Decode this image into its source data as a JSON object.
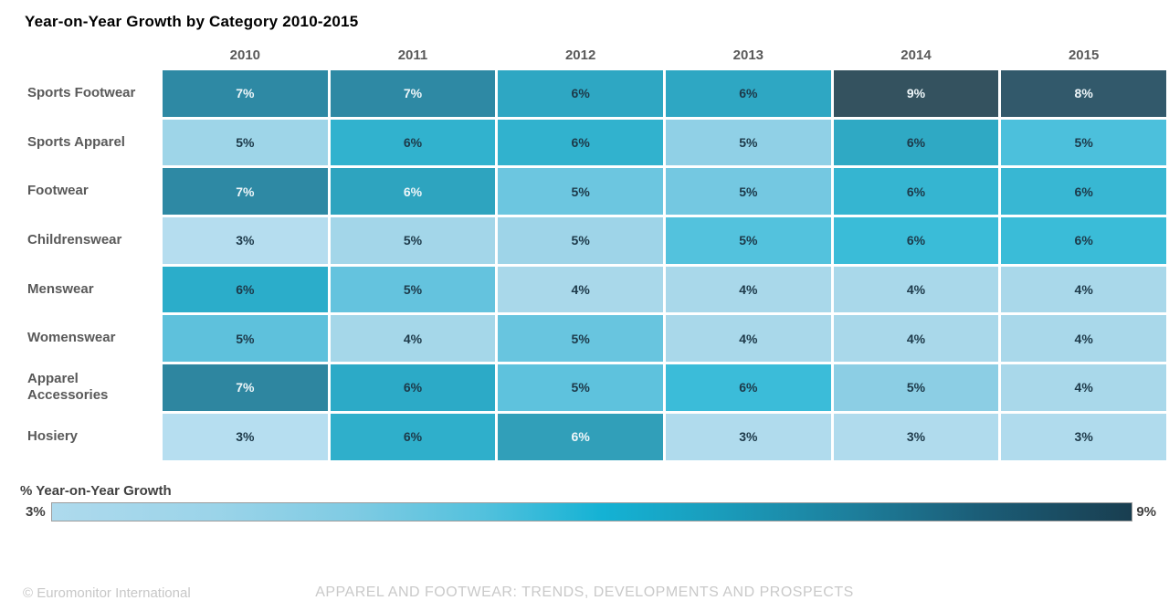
{
  "title": "Year-on-Year Growth by Category 2010-2015",
  "chart_data": {
    "type": "heatmap",
    "title": "Year-on-Year Growth by Category 2010-2015",
    "value_suffix": "%",
    "columns": [
      "2010",
      "2011",
      "2012",
      "2013",
      "2014",
      "2015"
    ],
    "rows": [
      {
        "label": "Sports Footwear",
        "values": [
          7,
          7,
          6,
          6,
          9,
          8
        ],
        "cell_colors": [
          "#2e89a4",
          "#2e89a4",
          "#2ea7c3",
          "#2ea7c3",
          "#34525f",
          "#32596b"
        ],
        "text_colors": [
          "#eef6f9",
          "#eef6f9",
          "#1d3949",
          "#1d3949",
          "#eef6f9",
          "#eef6f9"
        ]
      },
      {
        "label": "Sports Apparel",
        "values": [
          5,
          6,
          6,
          5,
          6,
          5
        ],
        "cell_colors": [
          "#9ed5e8",
          "#31b2ce",
          "#31b2ce",
          "#90d0e6",
          "#2fa9c4",
          "#4cc0dc"
        ],
        "text_colors": [
          "#1d3949",
          "#1d3949",
          "#1d3949",
          "#1d3949",
          "#1d3949",
          "#1d3949"
        ]
      },
      {
        "label": "Footwear",
        "values": [
          7,
          6,
          5,
          5,
          6,
          6
        ],
        "cell_colors": [
          "#2e89a4",
          "#2ea4bf",
          "#6cc6e0",
          "#74c8e1",
          "#35b5d1",
          "#38b7d3"
        ],
        "text_colors": [
          "#eef6f9",
          "#eef6f9",
          "#1d3949",
          "#1d3949",
          "#1d3949",
          "#1d3949"
        ]
      },
      {
        "label": "Childrenswear",
        "values": [
          3,
          5,
          5,
          5,
          6,
          6
        ],
        "cell_colors": [
          "#b5ddef",
          "#a3d6e9",
          "#9ed4e8",
          "#53c2dd",
          "#3abcd8",
          "#3abcd8"
        ],
        "text_colors": [
          "#1d3949",
          "#1d3949",
          "#1d3949",
          "#1d3949",
          "#1d3949",
          "#1d3949"
        ]
      },
      {
        "label": "Menswear",
        "values": [
          6,
          5,
          4,
          4,
          4,
          4
        ],
        "cell_colors": [
          "#2badca",
          "#64c3de",
          "#a9d8ea",
          "#a9d8ea",
          "#a9d8ea",
          "#a9d8ea"
        ],
        "text_colors": [
          "#1d3949",
          "#1d3949",
          "#1d3949",
          "#1d3949",
          "#1d3949",
          "#1d3949"
        ]
      },
      {
        "label": "Womenswear",
        "values": [
          5,
          4,
          5,
          4,
          4,
          4
        ],
        "cell_colors": [
          "#5ec1dc",
          "#a5d7e9",
          "#68c5df",
          "#a9d8ea",
          "#a9d8ea",
          "#a9d8ea"
        ],
        "text_colors": [
          "#1d3949",
          "#1d3949",
          "#1d3949",
          "#1d3949",
          "#1d3949",
          "#1d3949"
        ]
      },
      {
        "label": "Apparel Accessories",
        "values": [
          7,
          6,
          5,
          6,
          5,
          4
        ],
        "cell_colors": [
          "#2e86a0",
          "#2caac7",
          "#5ec2dd",
          "#3bbcd9",
          "#8ccee4",
          "#a9d8ea"
        ],
        "text_colors": [
          "#eef6f9",
          "#1d3949",
          "#1d3949",
          "#1d3949",
          "#1d3949",
          "#1d3949"
        ]
      },
      {
        "label": "Hosiery",
        "values": [
          3,
          6,
          6,
          3,
          3,
          3
        ],
        "cell_colors": [
          "#b6def0",
          "#2fafcb",
          "#319fb9",
          "#b0dbed",
          "#b0dbed",
          "#b0dbed"
        ],
        "text_colors": [
          "#1d3949",
          "#1d3949",
          "#eef6f9",
          "#1d3949",
          "#1d3949",
          "#1d3949"
        ]
      }
    ],
    "color_scale": {
      "min_value": 3,
      "max_value": 9,
      "min_color": "#aedaed",
      "mid_color": "#14b2d4",
      "max_color": "#193e50"
    },
    "legend": {
      "title": "% Year-on-Year Growth",
      "min_label": "3%",
      "max_label": "9%",
      "position": "bottom"
    }
  },
  "footer": {
    "copyright": "© Euromonitor International",
    "report_title": "APPAREL AND FOOTWEAR: TRENDS, DEVELOPMENTS AND PROSPECTS"
  }
}
